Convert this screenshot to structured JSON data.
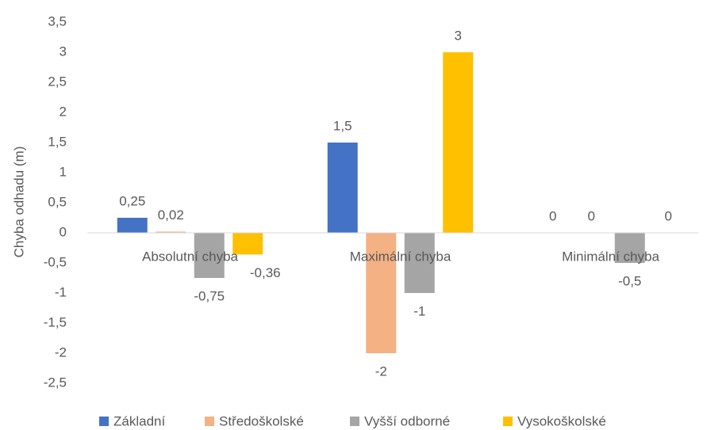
{
  "chart_data": {
    "type": "bar",
    "y_label": "Chyba odhadu (m)",
    "categories": [
      "Absolutní chyba",
      "Maximální chyba",
      "Minimální chyba"
    ],
    "series": [
      {
        "name": "Základní",
        "color": "#4472c4",
        "values": [
          0.25,
          1.5,
          0
        ],
        "value_labels": [
          "0,25",
          "1,5",
          "0"
        ]
      },
      {
        "name": "Středoškolské",
        "color": "#f4b183",
        "values": [
          0.02,
          -2,
          0
        ],
        "value_labels": [
          "0,02",
          "-2",
          "0"
        ]
      },
      {
        "name": "Vyšší odborné",
        "color": "#a5a5a5",
        "values": [
          -0.75,
          -1,
          -0.5
        ],
        "value_labels": [
          "-0,75",
          "-1",
          "-0,5"
        ]
      },
      {
        "name": "Vysokoškolské",
        "color": "#ffc000",
        "values": [
          -0.36,
          3,
          0
        ],
        "value_labels": [
          "-0,36",
          "3",
          "0"
        ]
      }
    ],
    "ylim": [
      -2.5,
      3.5
    ],
    "yticks": [
      {
        "value": -2.5,
        "label": "-2,5"
      },
      -2,
      {
        "value": -1.5,
        "label": "-1,5"
      },
      -1,
      {
        "value": -0.5,
        "label": "-0,5"
      },
      0,
      {
        "value": 0.5,
        "label": "0,5"
      },
      1,
      {
        "value": 1.5,
        "label": "1,5"
      },
      2,
      {
        "value": 2.5,
        "label": "2,5"
      },
      3,
      {
        "value": 3.5,
        "label": "3,5"
      }
    ],
    "grid": false,
    "legend": "bottom"
  }
}
